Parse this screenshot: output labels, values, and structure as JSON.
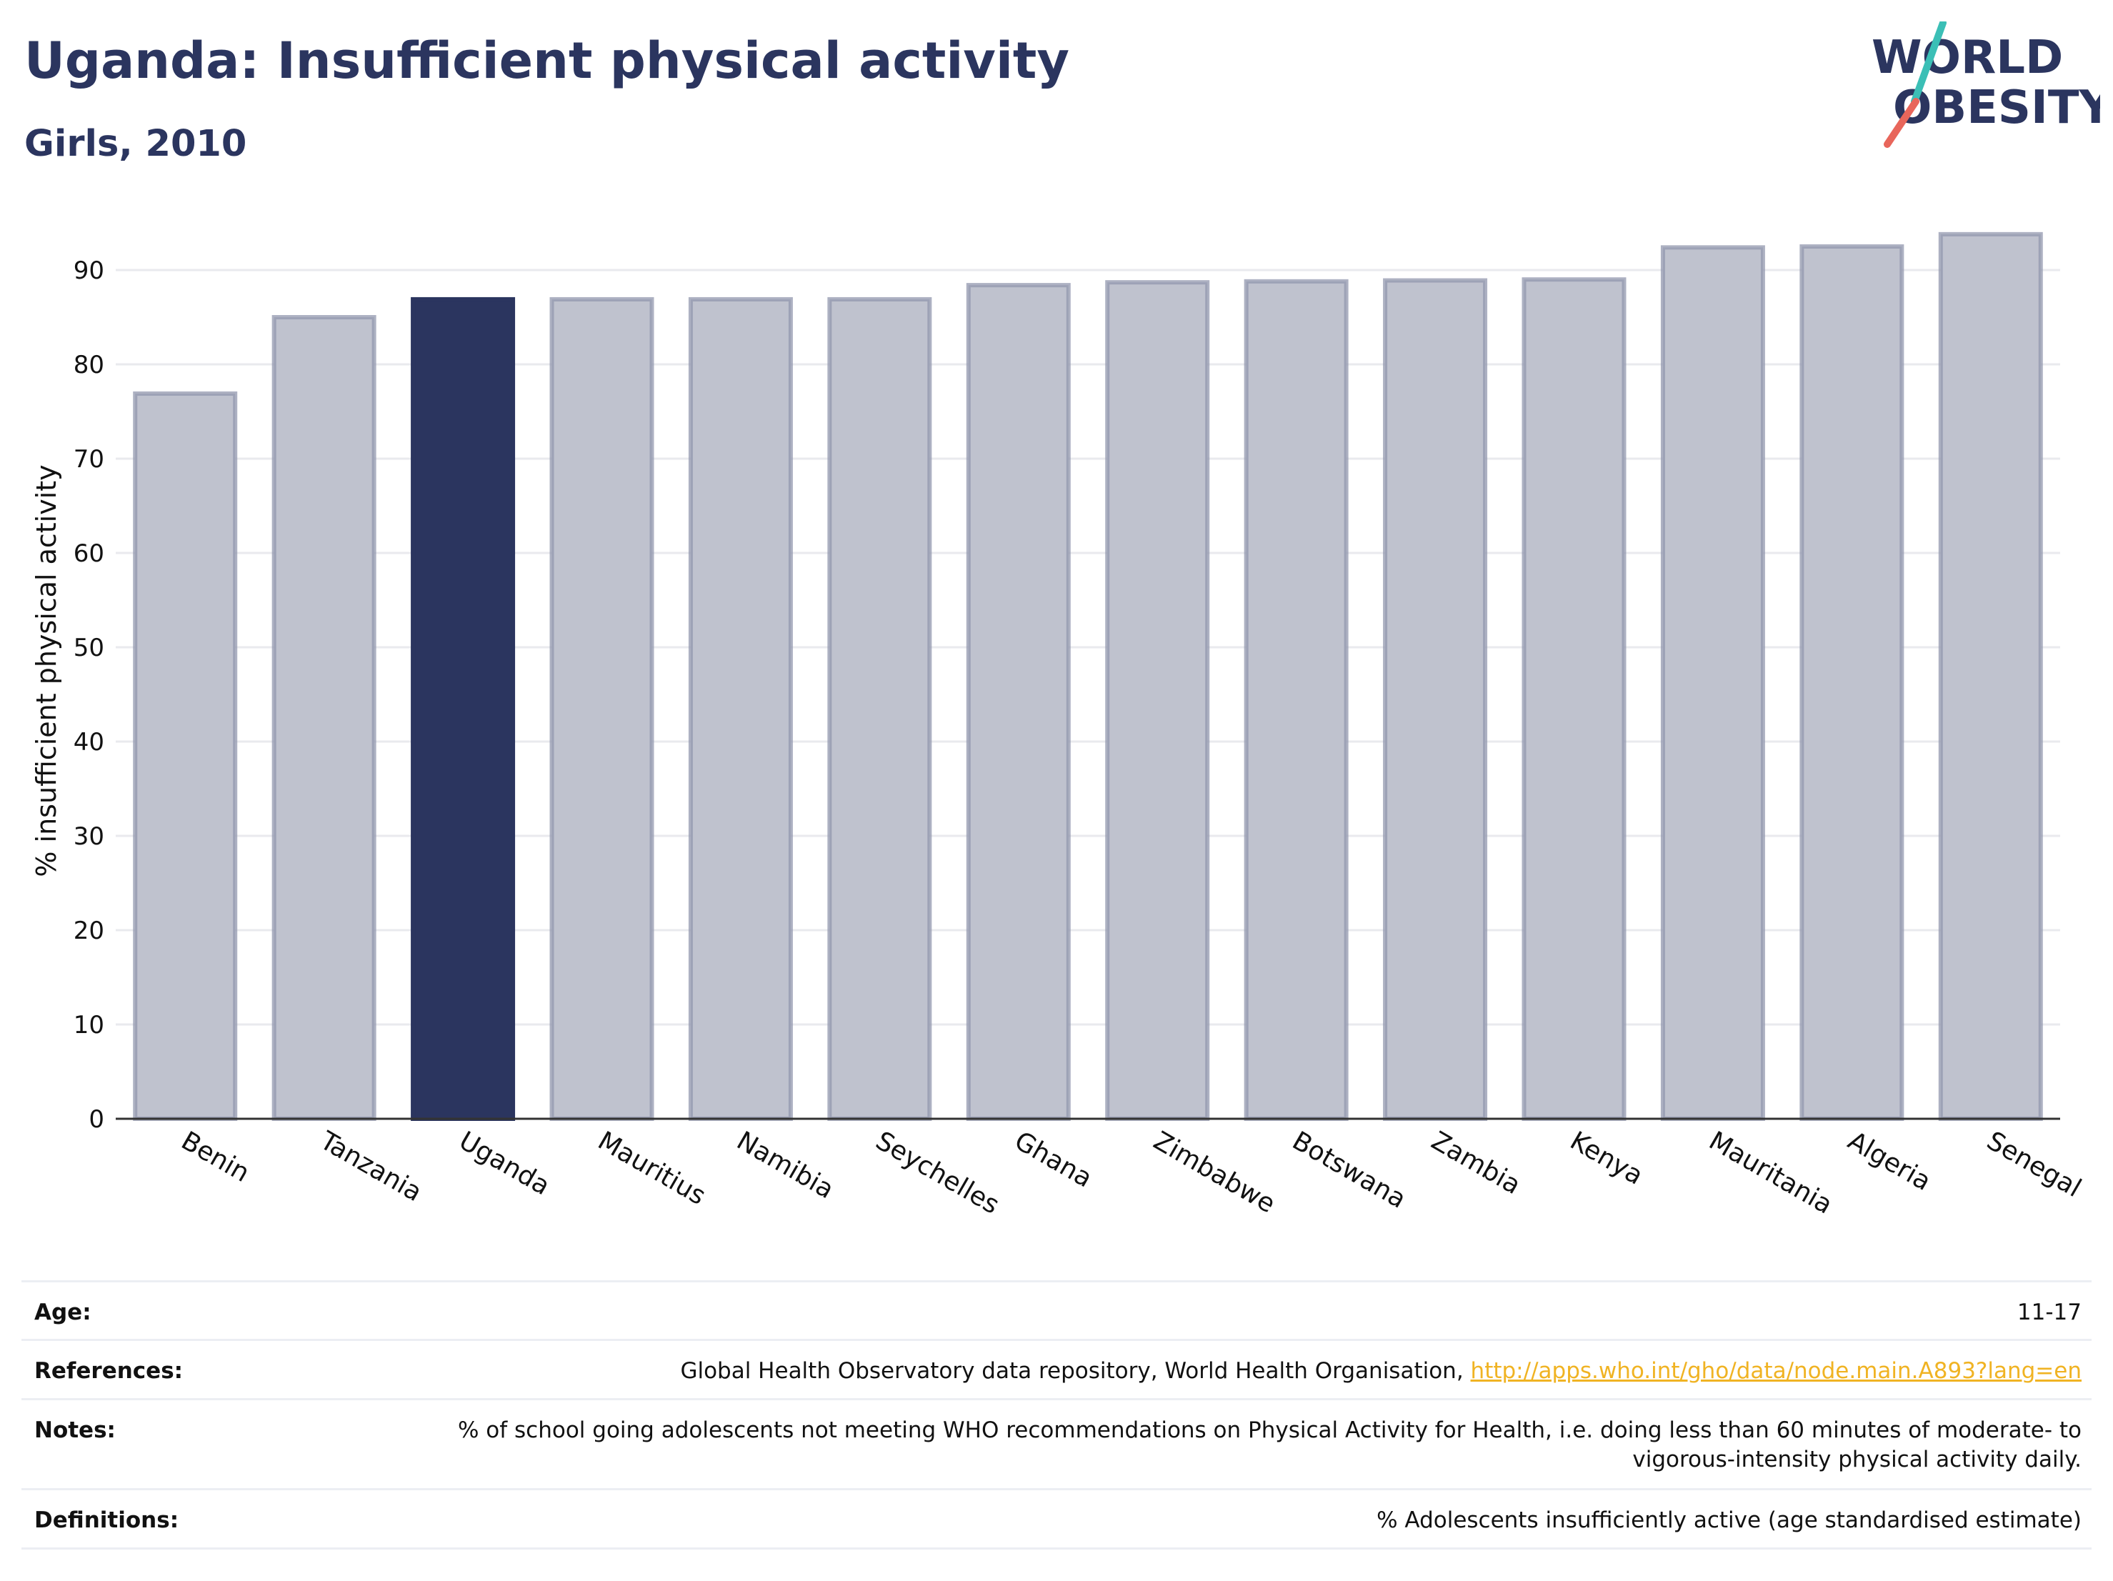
{
  "header": {
    "title": "Uganda: Insufficient physical activity",
    "subtitle": "Girls, 2010"
  },
  "logo": {
    "line1": "WORLD",
    "line2": "OBESITY",
    "colors": {
      "text": "#2b355f",
      "slash_teal": "#3bbfb6",
      "slash_coral": "#e8665b"
    }
  },
  "chart_data": {
    "type": "bar",
    "categories": [
      "Benin",
      "Tanzania",
      "Uganda",
      "Mauritius",
      "Namibia",
      "Seychelles",
      "Ghana",
      "Zimbabwe",
      "Botswana",
      "Zambia",
      "Kenya",
      "Mauritania",
      "Algeria",
      "Senegal"
    ],
    "values": [
      76.9,
      85.0,
      86.9,
      86.9,
      86.9,
      86.9,
      88.4,
      88.7,
      88.8,
      88.9,
      89.0,
      92.4,
      92.5,
      93.8
    ],
    "highlight": "Uganda",
    "ylabel": "% insufficient physical activity",
    "ylim": [
      0,
      95
    ],
    "yticks": [
      0,
      10,
      20,
      30,
      40,
      50,
      60,
      70,
      80,
      90
    ],
    "grid": true,
    "colors": {
      "highlight": "#2b355f",
      "bar_fill": "#bfc2ce",
      "bar_stroke": "#9197ae",
      "grid": "#e9eaee",
      "axis": "#333333"
    }
  },
  "info": {
    "rows": [
      {
        "label": "Age:",
        "value": "11-17"
      },
      {
        "label": "References:",
        "value": "Global Health Observatory data repository, World Health Organisation, ",
        "link": "http://apps.who.int/gho/data/node.main.A893?lang=en"
      },
      {
        "label": "Notes:",
        "value": "% of school going adolescents not meeting WHO recommendations on Physical Activity for Health, i.e. doing less than 60 minutes of moderate- to vigorous-intensity physical activity daily."
      },
      {
        "label": "Definitions:",
        "value": "% Adolescents insufficiently active (age standardised estimate)"
      }
    ]
  }
}
